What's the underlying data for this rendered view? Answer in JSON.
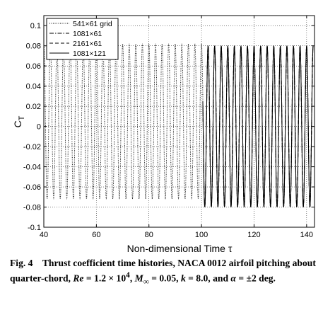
{
  "chart_data": {
    "type": "line",
    "xlabel": "Non-dimensional Time τ",
    "ylabel": "C",
    "ylabel_subscript": "T",
    "xlim": [
      40,
      143
    ],
    "ylim": [
      -0.1,
      0.11
    ],
    "xticks": [
      40,
      60,
      80,
      100,
      120,
      140
    ],
    "yticks": [
      -0.1,
      -0.08,
      -0.06,
      -0.04,
      -0.02,
      0,
      0.02,
      0.04,
      0.06,
      0.08,
      0.1
    ],
    "xtick_labels": [
      "40",
      "60",
      "80",
      "100",
      "120",
      "140"
    ],
    "ytick_labels": [
      "-0.1",
      "-0.08",
      "-0.06",
      "-0.04",
      "-0.02",
      "0",
      "0.02",
      "0.04",
      "0.06",
      "0.08",
      "0.1"
    ],
    "grid": true,
    "legend_position": "top-left",
    "series": [
      {
        "name": "541×61 grid",
        "linestyle": "dotted",
        "color": "#000000",
        "t_start": 40,
        "t_end": 101,
        "period": 2.5,
        "max": 0.082,
        "min": -0.072
      },
      {
        "name": "1081×61",
        "linestyle": "dashdot",
        "color": "#000000",
        "t_start": 100.5,
        "t_end": 142.5,
        "period": 2.5,
        "max": 0.08,
        "min": -0.08
      },
      {
        "name": "2161×61",
        "linestyle": "dashed",
        "color": "#000000",
        "t_start": 100.5,
        "t_end": 142.5,
        "period": 2.5,
        "max": 0.08,
        "min": -0.08
      },
      {
        "name": "1081×121",
        "linestyle": "solid",
        "color": "#000000",
        "t_start": 100.5,
        "t_end": 142.5,
        "period": 2.5,
        "max": 0.08,
        "min": -0.08
      }
    ]
  },
  "caption": {
    "fig_label": "Fig. 4",
    "text_1": "Thrust coefficient time histories, NACA 0012 airfoil pitching about quarter-chord,",
    "re_label": "Re",
    "re_value": "= 1.2 × 10",
    "re_exp": "4",
    "mach_label": "M",
    "mach_sub": "∞",
    "mach_value": "= 0.05,",
    "k_label": "k",
    "k_value": "= 8.0, and",
    "alpha_label": "α",
    "alpha_value": "= ±2 deg."
  }
}
